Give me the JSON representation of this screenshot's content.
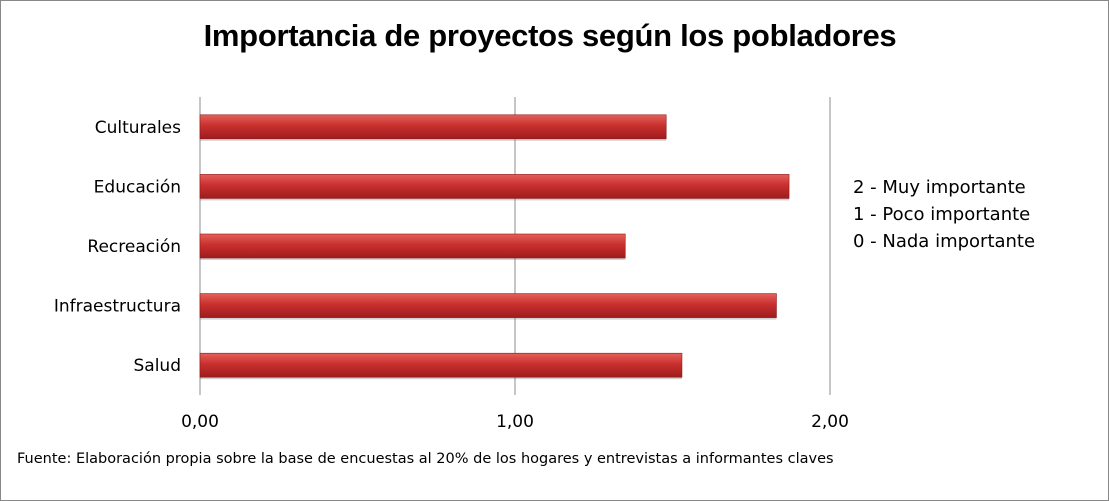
{
  "chart_data": {
    "type": "bar",
    "orientation": "horizontal",
    "title": "Importancia de proyectos según los pobladores",
    "categories": [
      "Culturales",
      "Educación",
      "Recreación",
      "Infraestructura",
      "Salud"
    ],
    "values": [
      1.48,
      1.87,
      1.35,
      1.83,
      1.53
    ],
    "xlim": [
      0,
      2
    ],
    "x_ticks": [
      0,
      1,
      2
    ],
    "x_tick_labels": [
      "0,00",
      "1,00",
      "2,00"
    ],
    "grid": "vertical",
    "bar_color": "#c0282a",
    "annotations": [
      "2 - Muy importante",
      "1 - Poco importante",
      "0 - Nada importante"
    ],
    "source_note": "Fuente:  Elaboración propia sobre la base de encuestas al 20%  de los hogares y entrevistas a informantes claves"
  }
}
